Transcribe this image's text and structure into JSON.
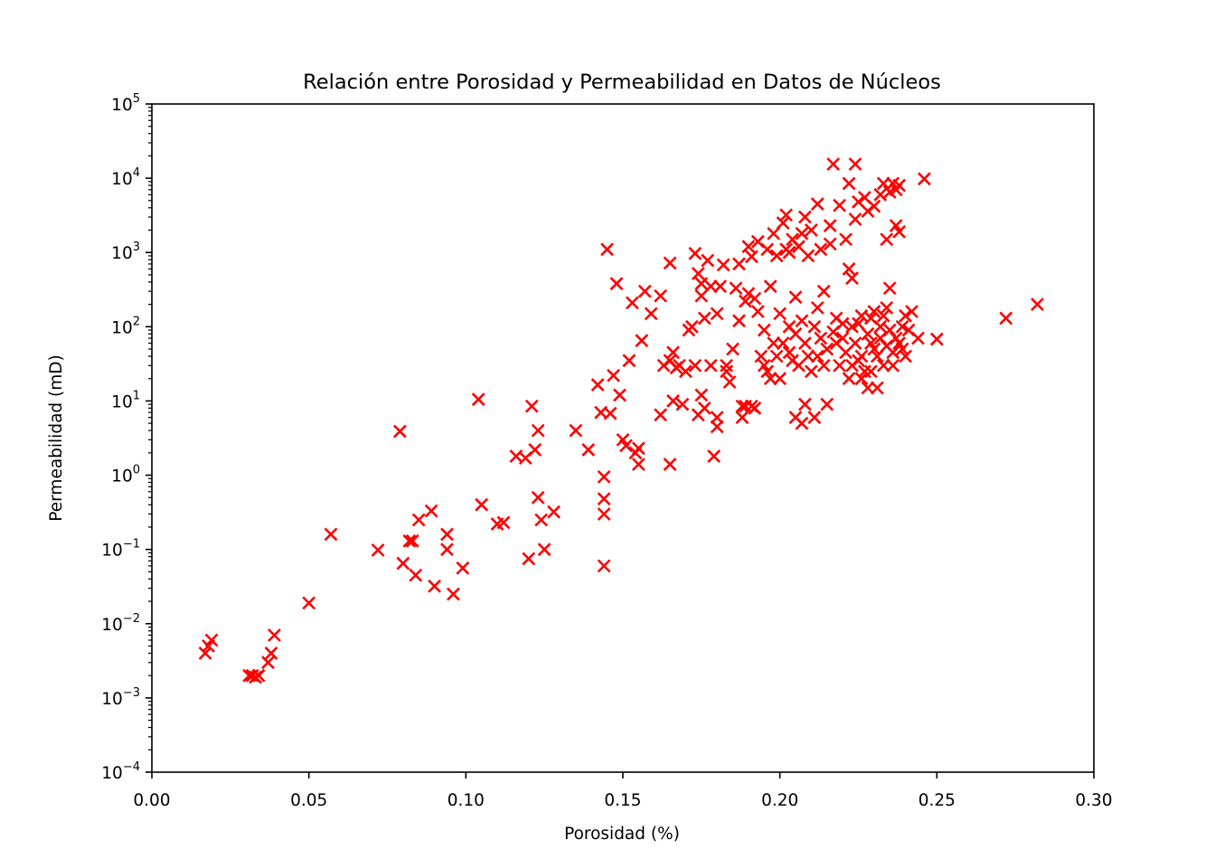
{
  "colors": {
    "marker": "#ff0000",
    "axis": "#000000",
    "background": "#ffffff"
  },
  "chart_data": {
    "type": "scatter",
    "title": "Relación entre Porosidad y Permeabilidad en Datos de Núcleos",
    "xlabel": "Porosidad (%)",
    "ylabel": "Permeabilidad (mD)",
    "xlim": [
      0.0,
      0.3
    ],
    "ylim": [
      0.0001,
      100000
    ],
    "yscale": "log",
    "grid": false,
    "marker": "x",
    "x_ticks": [
      {
        "value": 0.0,
        "label": "0.00"
      },
      {
        "value": 0.05,
        "label": "0.05"
      },
      {
        "value": 0.1,
        "label": "0.10"
      },
      {
        "value": 0.15,
        "label": "0.15"
      },
      {
        "value": 0.2,
        "label": "0.20"
      },
      {
        "value": 0.25,
        "label": "0.25"
      },
      {
        "value": 0.3,
        "label": "0.30"
      }
    ],
    "y_ticks": [
      {
        "exp": -4,
        "base": "10",
        "sup": "−4"
      },
      {
        "exp": -3,
        "base": "10",
        "sup": "−3"
      },
      {
        "exp": -2,
        "base": "10",
        "sup": "−2"
      },
      {
        "exp": -1,
        "base": "10",
        "sup": "−1"
      },
      {
        "exp": 0,
        "base": "10",
        "sup": "0"
      },
      {
        "exp": 1,
        "base": "10",
        "sup": "1"
      },
      {
        "exp": 2,
        "base": "10",
        "sup": "2"
      },
      {
        "exp": 3,
        "base": "10",
        "sup": "3"
      },
      {
        "exp": 4,
        "base": "10",
        "sup": "4"
      },
      {
        "exp": 5,
        "base": "10",
        "sup": "5"
      }
    ],
    "points": [
      [
        0.017,
        0.004
      ],
      [
        0.018,
        0.005
      ],
      [
        0.019,
        0.006
      ],
      [
        0.031,
        0.002
      ],
      [
        0.032,
        0.002
      ],
      [
        0.033,
        0.0019
      ],
      [
        0.034,
        0.002
      ],
      [
        0.037,
        0.003
      ],
      [
        0.038,
        0.004
      ],
      [
        0.039,
        0.007
      ],
      [
        0.05,
        0.019
      ],
      [
        0.057,
        0.16
      ],
      [
        0.072,
        0.098
      ],
      [
        0.079,
        3.9
      ],
      [
        0.08,
        0.065
      ],
      [
        0.082,
        0.13
      ],
      [
        0.083,
        0.13
      ],
      [
        0.084,
        0.045
      ],
      [
        0.085,
        0.25
      ],
      [
        0.089,
        0.33
      ],
      [
        0.09,
        0.032
      ],
      [
        0.094,
        0.16
      ],
      [
        0.094,
        0.1
      ],
      [
        0.096,
        0.025
      ],
      [
        0.099,
        0.056
      ],
      [
        0.104,
        10.5
      ],
      [
        0.105,
        0.4
      ],
      [
        0.11,
        0.22
      ],
      [
        0.112,
        0.23
      ],
      [
        0.116,
        1.8
      ],
      [
        0.119,
        1.7
      ],
      [
        0.12,
        0.075
      ],
      [
        0.121,
        8.5
      ],
      [
        0.122,
        2.2
      ],
      [
        0.123,
        4.0
      ],
      [
        0.123,
        0.5
      ],
      [
        0.124,
        0.25
      ],
      [
        0.125,
        0.1
      ],
      [
        0.128,
        0.32
      ],
      [
        0.135,
        4.0
      ],
      [
        0.139,
        2.2
      ],
      [
        0.142,
        16.5
      ],
      [
        0.143,
        7.0
      ],
      [
        0.144,
        0.95
      ],
      [
        0.144,
        0.48
      ],
      [
        0.144,
        0.3
      ],
      [
        0.144,
        0.06
      ],
      [
        0.145,
        1100
      ],
      [
        0.146,
        6.8
      ],
      [
        0.147,
        22
      ],
      [
        0.148,
        380
      ],
      [
        0.149,
        12
      ],
      [
        0.15,
        3.0
      ],
      [
        0.151,
        2.5
      ],
      [
        0.152,
        35
      ],
      [
        0.153,
        210
      ],
      [
        0.154,
        2.0
      ],
      [
        0.155,
        1.4
      ],
      [
        0.155,
        2.3
      ],
      [
        0.156,
        65
      ],
      [
        0.157,
        300
      ],
      [
        0.159,
        150
      ],
      [
        0.162,
        6.5
      ],
      [
        0.162,
        260
      ],
      [
        0.163,
        30
      ],
      [
        0.165,
        1.4
      ],
      [
        0.165,
        35
      ],
      [
        0.165,
        720
      ],
      [
        0.166,
        45
      ],
      [
        0.166,
        10
      ],
      [
        0.167,
        28
      ],
      [
        0.168,
        30
      ],
      [
        0.169,
        9
      ],
      [
        0.17,
        25
      ],
      [
        0.171,
        90
      ],
      [
        0.172,
        100
      ],
      [
        0.173,
        970
      ],
      [
        0.173,
        30
      ],
      [
        0.174,
        6.5
      ],
      [
        0.174,
        520
      ],
      [
        0.175,
        380
      ],
      [
        0.175,
        260
      ],
      [
        0.175,
        12
      ],
      [
        0.176,
        130
      ],
      [
        0.176,
        8
      ],
      [
        0.177,
        780
      ],
      [
        0.178,
        350
      ],
      [
        0.178,
        30
      ],
      [
        0.179,
        1.8
      ],
      [
        0.18,
        4.5
      ],
      [
        0.18,
        6
      ],
      [
        0.18,
        150
      ],
      [
        0.181,
        350
      ],
      [
        0.182,
        680
      ],
      [
        0.183,
        30
      ],
      [
        0.183,
        25
      ],
      [
        0.184,
        18
      ],
      [
        0.185,
        50
      ],
      [
        0.186,
        330
      ],
      [
        0.187,
        120
      ],
      [
        0.187,
        700
      ],
      [
        0.188,
        8.5
      ],
      [
        0.188,
        6.0
      ],
      [
        0.189,
        8.5
      ],
      [
        0.189,
        220
      ],
      [
        0.19,
        1200
      ],
      [
        0.19,
        280
      ],
      [
        0.191,
        880
      ],
      [
        0.191,
        8.5
      ],
      [
        0.192,
        8
      ],
      [
        0.192,
        240
      ],
      [
        0.193,
        160
      ],
      [
        0.193,
        1400
      ],
      [
        0.194,
        40
      ],
      [
        0.195,
        30
      ],
      [
        0.195,
        90
      ],
      [
        0.196,
        25
      ],
      [
        0.196,
        1100
      ],
      [
        0.197,
        20
      ],
      [
        0.197,
        350
      ],
      [
        0.198,
        60
      ],
      [
        0.198,
        1800
      ],
      [
        0.199,
        900
      ],
      [
        0.199,
        40
      ],
      [
        0.2,
        150
      ],
      [
        0.2,
        20
      ],
      [
        0.201,
        2500
      ],
      [
        0.201,
        60
      ],
      [
        0.202,
        1100
      ],
      [
        0.202,
        3200
      ],
      [
        0.203,
        45
      ],
      [
        0.203,
        100
      ],
      [
        0.203,
        1000
      ],
      [
        0.204,
        35
      ],
      [
        0.204,
        1500
      ],
      [
        0.205,
        80
      ],
      [
        0.205,
        250
      ],
      [
        0.205,
        6
      ],
      [
        0.206,
        30
      ],
      [
        0.206,
        1200
      ],
      [
        0.207,
        120
      ],
      [
        0.207,
        5
      ],
      [
        0.207,
        1800
      ],
      [
        0.208,
        9
      ],
      [
        0.208,
        60
      ],
      [
        0.208,
        3000
      ],
      [
        0.209,
        40
      ],
      [
        0.209,
        900
      ],
      [
        0.21,
        25
      ],
      [
        0.21,
        2000
      ],
      [
        0.211,
        6
      ],
      [
        0.211,
        100
      ],
      [
        0.212,
        40
      ],
      [
        0.212,
        180
      ],
      [
        0.212,
        4500
      ],
      [
        0.213,
        1100
      ],
      [
        0.213,
        70
      ],
      [
        0.214,
        30
      ],
      [
        0.214,
        300
      ],
      [
        0.215,
        50
      ],
      [
        0.215,
        9
      ],
      [
        0.216,
        1300
      ],
      [
        0.216,
        2300
      ],
      [
        0.217,
        15500
      ],
      [
        0.217,
        85
      ],
      [
        0.218,
        60
      ],
      [
        0.218,
        130
      ],
      [
        0.219,
        30
      ],
      [
        0.219,
        4300
      ],
      [
        0.22,
        70
      ],
      [
        0.22,
        110
      ],
      [
        0.221,
        45
      ],
      [
        0.221,
        1500
      ],
      [
        0.222,
        8500
      ],
      [
        0.222,
        20
      ],
      [
        0.222,
        600
      ],
      [
        0.223,
        100
      ],
      [
        0.223,
        30
      ],
      [
        0.223,
        450
      ],
      [
        0.224,
        15500
      ],
      [
        0.224,
        60
      ],
      [
        0.224,
        2800
      ],
      [
        0.225,
        110
      ],
      [
        0.225,
        35
      ],
      [
        0.225,
        4800
      ],
      [
        0.226,
        40
      ],
      [
        0.226,
        20
      ],
      [
        0.226,
        140
      ],
      [
        0.227,
        25
      ],
      [
        0.227,
        5500
      ],
      [
        0.228,
        80
      ],
      [
        0.228,
        15
      ],
      [
        0.228,
        3600
      ],
      [
        0.229,
        60
      ],
      [
        0.229,
        130
      ],
      [
        0.229,
        25
      ],
      [
        0.23,
        50
      ],
      [
        0.23,
        4200
      ],
      [
        0.23,
        160
      ],
      [
        0.231,
        40
      ],
      [
        0.231,
        15
      ],
      [
        0.232,
        100
      ],
      [
        0.232,
        6000
      ],
      [
        0.232,
        70
      ],
      [
        0.233,
        8500
      ],
      [
        0.233,
        30
      ],
      [
        0.233,
        140
      ],
      [
        0.234,
        55
      ],
      [
        0.234,
        1500
      ],
      [
        0.234,
        180
      ],
      [
        0.235,
        90
      ],
      [
        0.235,
        330
      ],
      [
        0.235,
        6500
      ],
      [
        0.236,
        45
      ],
      [
        0.236,
        30
      ],
      [
        0.236,
        8500
      ],
      [
        0.237,
        70
      ],
      [
        0.237,
        2300
      ],
      [
        0.237,
        7000
      ],
      [
        0.238,
        60
      ],
      [
        0.238,
        1900
      ],
      [
        0.238,
        8000
      ],
      [
        0.239,
        100
      ],
      [
        0.239,
        50
      ],
      [
        0.24,
        140
      ],
      [
        0.24,
        40
      ],
      [
        0.241,
        90
      ],
      [
        0.242,
        160
      ],
      [
        0.244,
        70
      ],
      [
        0.246,
        9800
      ],
      [
        0.25,
        68
      ],
      [
        0.272,
        130
      ],
      [
        0.282,
        200
      ]
    ]
  }
}
